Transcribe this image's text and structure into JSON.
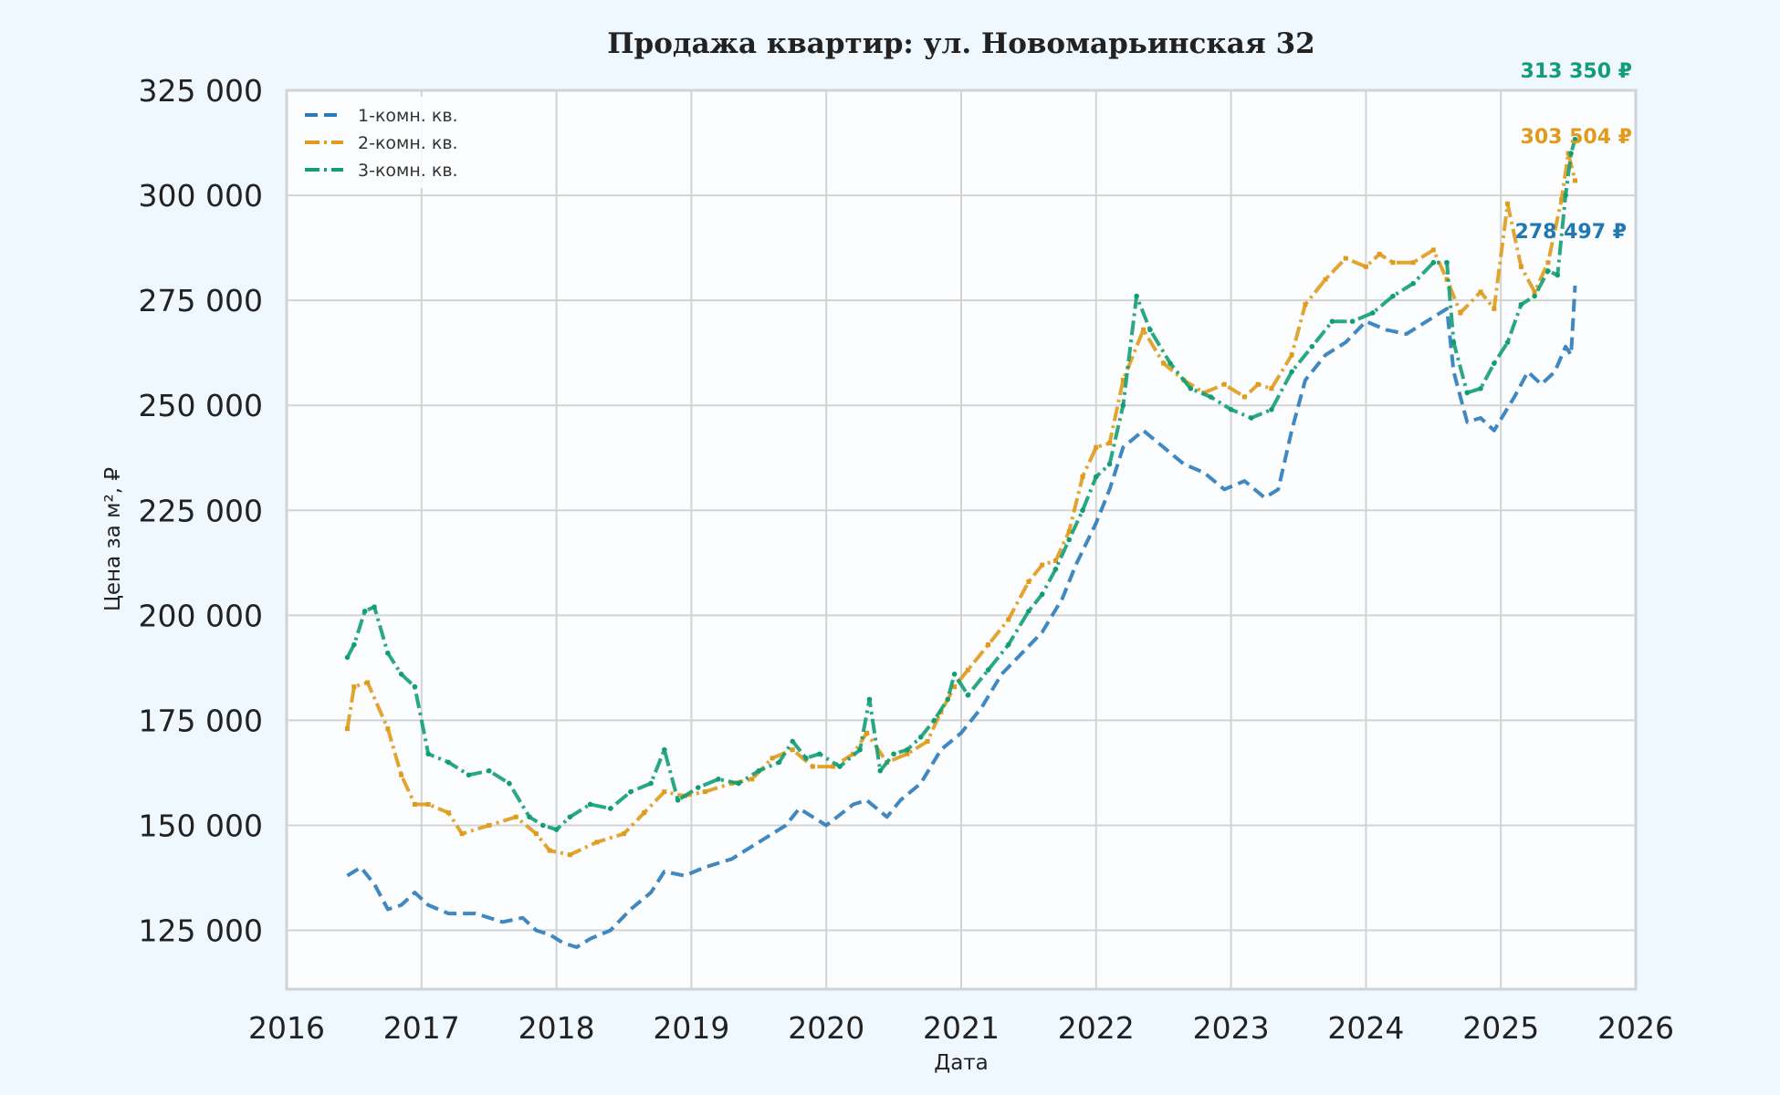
{
  "chart_data": {
    "type": "line",
    "title": "Продажа квартир: ул. Новомарьинская 32",
    "xlabel": "Дата",
    "ylabel": "Цена за м², ₽",
    "xlim": [
      2016.0,
      2026.0
    ],
    "ylim": [
      111000,
      325000
    ],
    "x_ticks": [
      2016,
      2017,
      2018,
      2019,
      2020,
      2021,
      2022,
      2023,
      2024,
      2025,
      2026
    ],
    "x_tick_labels": [
      "2016",
      "2017",
      "2018",
      "2019",
      "2020",
      "2021",
      "2022",
      "2023",
      "2024",
      "2025",
      "2026"
    ],
    "y_ticks": [
      125000,
      150000,
      175000,
      200000,
      225000,
      250000,
      275000,
      300000,
      325000
    ],
    "y_tick_labels": [
      "125 000",
      "150 000",
      "175 000",
      "200 000",
      "225 000",
      "250 000",
      "275 000",
      "300 000",
      "325 000"
    ],
    "grid": true,
    "legend_position": "top-left",
    "series": [
      {
        "name": "1-комн. кв.",
        "color": "#2b7bba",
        "dash": "dashed",
        "x": [
          2016.45,
          2016.55,
          2016.65,
          2016.75,
          2016.85,
          2016.95,
          2017.05,
          2017.2,
          2017.4,
          2017.6,
          2017.75,
          2017.85,
          2017.95,
          2018.05,
          2018.15,
          2018.25,
          2018.4,
          2018.55,
          2018.7,
          2018.8,
          2018.95,
          2019.1,
          2019.3,
          2019.5,
          2019.7,
          2019.8,
          2019.9,
          2020.0,
          2020.2,
          2020.3,
          2020.45,
          2020.55,
          2020.7,
          2020.85,
          2021.0,
          2021.15,
          2021.3,
          2021.45,
          2021.6,
          2021.75,
          2021.85,
          2022.0,
          2022.1,
          2022.2,
          2022.35,
          2022.5,
          2022.65,
          2022.8,
          2022.95,
          2023.1,
          2023.25,
          2023.35,
          2023.45,
          2023.55,
          2023.7,
          2023.85,
          2024.0,
          2024.15,
          2024.3,
          2024.45,
          2024.6,
          2024.65,
          2024.75,
          2024.85,
          2024.95,
          2025.1,
          2025.2,
          2025.3,
          2025.4,
          2025.48,
          2025.52,
          2025.55
        ],
        "y": [
          138000,
          140000,
          136000,
          130000,
          131000,
          134000,
          131000,
          129000,
          129000,
          127000,
          128000,
          125000,
          124000,
          122000,
          121000,
          123000,
          125000,
          130000,
          134000,
          139000,
          138000,
          140000,
          142000,
          146000,
          150000,
          154000,
          152000,
          150000,
          155000,
          156000,
          152000,
          156000,
          160000,
          168000,
          172000,
          178000,
          186000,
          191000,
          196000,
          204000,
          212000,
          222000,
          230000,
          240000,
          244000,
          240000,
          236000,
          234000,
          230000,
          232000,
          228000,
          230000,
          244000,
          256000,
          262000,
          265000,
          270000,
          268000,
          267000,
          270000,
          273000,
          258000,
          246000,
          247000,
          244000,
          252000,
          258000,
          255000,
          258000,
          264000,
          262000,
          278497
        ]
      },
      {
        "name": "2-комн. кв.",
        "color": "#e09b1c",
        "dash": "dashdot-square",
        "x": [
          2016.45,
          2016.5,
          2016.6,
          2016.75,
          2016.85,
          2016.95,
          2017.05,
          2017.2,
          2017.3,
          2017.5,
          2017.7,
          2017.85,
          2017.95,
          2018.1,
          2018.3,
          2018.5,
          2018.65,
          2018.8,
          2018.95,
          2019.1,
          2019.3,
          2019.45,
          2019.6,
          2019.75,
          2019.9,
          2020.05,
          2020.2,
          2020.3,
          2020.45,
          2020.6,
          2020.75,
          2020.85,
          2020.95,
          2021.05,
          2021.2,
          2021.35,
          2021.5,
          2021.6,
          2021.7,
          2021.8,
          2021.9,
          2022.0,
          2022.1,
          2022.2,
          2022.35,
          2022.5,
          2022.65,
          2022.8,
          2022.95,
          2023.1,
          2023.2,
          2023.3,
          2023.45,
          2023.55,
          2023.7,
          2023.85,
          2024.0,
          2024.1,
          2024.2,
          2024.35,
          2024.5,
          2024.6,
          2024.7,
          2024.85,
          2024.95,
          2025.05,
          2025.15,
          2025.25,
          2025.35,
          2025.45,
          2025.5,
          2025.55
        ],
        "y": [
          173000,
          183000,
          184000,
          173000,
          162000,
          155000,
          155000,
          153000,
          148000,
          150000,
          152000,
          148000,
          144000,
          143000,
          146000,
          148000,
          153000,
          158000,
          157000,
          158000,
          160000,
          161000,
          166000,
          168000,
          164000,
          164000,
          167000,
          172000,
          165000,
          167000,
          170000,
          177000,
          183000,
          187000,
          193000,
          199000,
          208000,
          212000,
          213000,
          220000,
          233000,
          240000,
          241000,
          256000,
          268000,
          260000,
          256000,
          253000,
          255000,
          252000,
          255000,
          254000,
          262000,
          274000,
          280000,
          285000,
          283000,
          286000,
          284000,
          284000,
          287000,
          280000,
          272000,
          277000,
          273000,
          298000,
          283000,
          277000,
          284000,
          299000,
          310000,
          303504
        ]
      },
      {
        "name": "3-комн. кв.",
        "color": "#129e74",
        "dash": "dashdot-dot",
        "x": [
          2016.45,
          2016.5,
          2016.58,
          2016.65,
          2016.75,
          2016.85,
          2016.95,
          2017.05,
          2017.2,
          2017.35,
          2017.5,
          2017.65,
          2017.8,
          2017.9,
          2018.0,
          2018.1,
          2018.25,
          2018.4,
          2018.55,
          2018.7,
          2018.8,
          2018.9,
          2019.05,
          2019.2,
          2019.35,
          2019.5,
          2019.65,
          2019.75,
          2019.85,
          2019.95,
          2020.1,
          2020.25,
          2020.32,
          2020.4,
          2020.5,
          2020.6,
          2020.7,
          2020.8,
          2020.9,
          2020.95,
          2021.05,
          2021.2,
          2021.35,
          2021.5,
          2021.6,
          2021.7,
          2021.8,
          2021.9,
          2022.0,
          2022.1,
          2022.2,
          2022.3,
          2022.4,
          2022.55,
          2022.7,
          2022.85,
          2023.0,
          2023.15,
          2023.3,
          2023.45,
          2023.6,
          2023.75,
          2023.9,
          2024.05,
          2024.2,
          2024.35,
          2024.5,
          2024.6,
          2024.65,
          2024.75,
          2024.85,
          2024.95,
          2025.05,
          2025.15,
          2025.25,
          2025.35,
          2025.42,
          2025.48,
          2025.52,
          2025.55
        ],
        "y": [
          190000,
          193000,
          201000,
          202000,
          191000,
          186000,
          183000,
          167000,
          165000,
          162000,
          163000,
          160000,
          152000,
          150000,
          149000,
          152000,
          155000,
          154000,
          158000,
          160000,
          168000,
          156000,
          159000,
          161000,
          160000,
          163000,
          165000,
          170000,
          166000,
          167000,
          164000,
          168000,
          180000,
          163000,
          167000,
          168000,
          171000,
          175000,
          180000,
          186000,
          181000,
          187000,
          193000,
          201000,
          205000,
          211000,
          218000,
          225000,
          233000,
          236000,
          250000,
          276000,
          268000,
          260000,
          254000,
          252000,
          249000,
          247000,
          249000,
          258000,
          264000,
          270000,
          270000,
          272000,
          276000,
          279000,
          284000,
          284000,
          265000,
          253000,
          254000,
          260000,
          265000,
          274000,
          276000,
          282000,
          281000,
          300000,
          310000,
          313350
        ]
      }
    ],
    "end_labels": [
      {
        "series": "3-комн. кв.",
        "text": "313 350 ₽",
        "color": "#129e74",
        "value": 313350
      },
      {
        "series": "2-комн. кв.",
        "text": "303 504 ₽",
        "color": "#e09b1c",
        "value": 303504
      },
      {
        "series": "1-комн. кв.",
        "text": "278 497 ₽",
        "color": "#1f77b4",
        "value": 278497
      }
    ]
  }
}
